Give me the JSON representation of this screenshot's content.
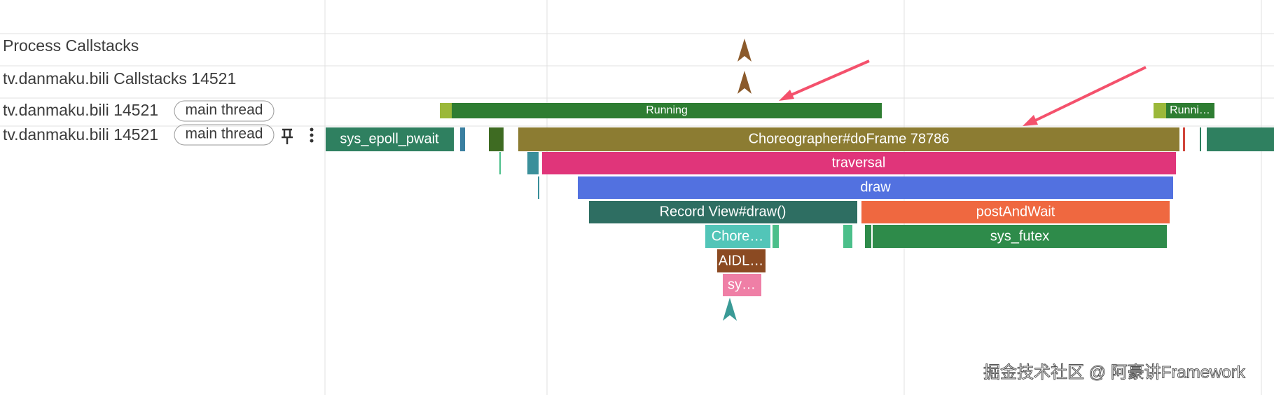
{
  "tracks": [
    {
      "label": "Process Callstacks"
    },
    {
      "label": "tv.danmaku.bili Callstacks 14521"
    },
    {
      "label": "tv.danmaku.bili 14521",
      "tag": "main thread"
    },
    {
      "label": "tv.danmaku.bili 14521",
      "tag": "main thread"
    }
  ],
  "thread_state": [
    "Running",
    "Runni…"
  ],
  "slices": [
    "sys_epoll_pwait",
    "Choreographer#doFrame 78786",
    "traversal",
    "draw",
    "Record View#draw()",
    "postAndWait",
    "Chore…",
    "sys_futex",
    "AIDL…",
    "sy…"
  ],
  "watermark": "掘金技术社区 @ 阿豪讲Framework"
}
